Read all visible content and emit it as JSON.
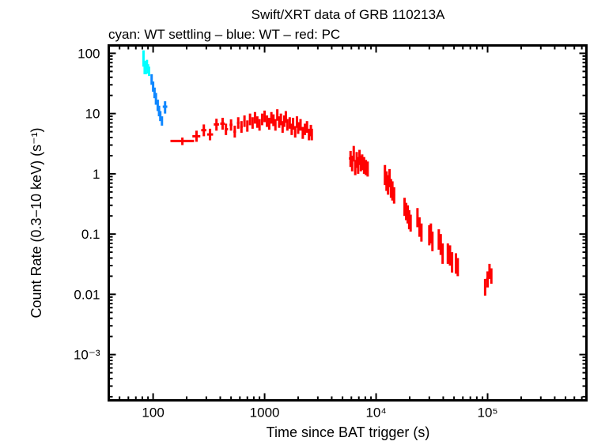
{
  "chart_data": {
    "type": "scatter",
    "title": "Swift/XRT data of GRB 110213A",
    "subtitle": "cyan: WT settling – blue: WT – red: PC",
    "xlabel": "Time since BAT trigger (s)",
    "ylabel": "Count Rate (0.3−10 keV) (s⁻¹)",
    "xscale": "log",
    "yscale": "log",
    "xlim": [
      40,
      770000
    ],
    "ylim": [
      0.000174,
      135
    ],
    "x_ticks": [
      {
        "v": 100,
        "label": "100"
      },
      {
        "v": 1000,
        "label": "1000"
      },
      {
        "v": 10000,
        "label": "10⁴"
      },
      {
        "v": 100000,
        "label": "10⁵"
      }
    ],
    "y_ticks": [
      {
        "v": 100,
        "label": "100"
      },
      {
        "v": 10,
        "label": "10"
      },
      {
        "v": 1,
        "label": "1"
      },
      {
        "v": 0.1,
        "label": "0.1"
      },
      {
        "v": 0.01,
        "label": "0.01"
      },
      {
        "v": 0.001,
        "label": "10⁻³"
      }
    ],
    "grid": false,
    "point_format": [
      "t",
      "t_lo",
      "t_hi",
      "rate",
      "rate_lo",
      "rate_hi"
    ],
    "series": [
      {
        "name": "WT settling",
        "color": "#00ffff",
        "points": [
          [
            82,
            81,
            83,
            85,
            60,
            112
          ],
          [
            84,
            83,
            85,
            60,
            45,
            75
          ],
          [
            86,
            85,
            87,
            55,
            45,
            70
          ],
          [
            88,
            87,
            89,
            65,
            55,
            78
          ],
          [
            90,
            89,
            91,
            55,
            46,
            66
          ],
          [
            92,
            91,
            93,
            50,
            42,
            60
          ]
        ]
      },
      {
        "name": "WT",
        "color": "#0f87ff",
        "points": [
          [
            97,
            96,
            98,
            38,
            30,
            45
          ],
          [
            100,
            99,
            101,
            28,
            23,
            34
          ],
          [
            103,
            102,
            104,
            22,
            18,
            27
          ],
          [
            106,
            105,
            107,
            18,
            14,
            22
          ],
          [
            110,
            109,
            111,
            14,
            11,
            17
          ],
          [
            113,
            112,
            114,
            11,
            9,
            13.5
          ],
          [
            116,
            115,
            117,
            9,
            7.5,
            11
          ],
          [
            120,
            118,
            122,
            7.5,
            6.3,
            9
          ],
          [
            128,
            122,
            134,
            13,
            10,
            16
          ]
        ]
      },
      {
        "name": "PC",
        "color": "#ff0000",
        "points": [
          [
            183,
            143,
            233,
            3.5,
            3.0,
            4.0
          ],
          [
            245,
            225,
            265,
            4.2,
            3.4,
            5.2
          ],
          [
            285,
            270,
            300,
            5.3,
            4.2,
            6.6
          ],
          [
            324,
            305,
            345,
            4.5,
            3.6,
            5.6
          ],
          [
            370,
            350,
            390,
            6.6,
            5.2,
            8.2
          ],
          [
            420,
            400,
            440,
            6.8,
            5.4,
            8.5
          ],
          [
            450,
            440,
            470,
            5.5,
            4.4,
            6.8
          ],
          [
            500,
            485,
            515,
            6.5,
            5.2,
            8
          ],
          [
            540,
            525,
            555,
            5.0,
            4,
            6.3
          ],
          [
            580,
            565,
            595,
            7.0,
            5.6,
            8.7
          ],
          [
            620,
            605,
            635,
            6.0,
            4.8,
            7.5
          ],
          [
            660,
            645,
            675,
            7.5,
            6,
            9.3
          ],
          [
            700,
            685,
            715,
            6.2,
            5,
            7.7
          ],
          [
            740,
            725,
            755,
            8.0,
            6.4,
            10
          ],
          [
            780,
            765,
            795,
            7.0,
            5.6,
            8.7
          ],
          [
            820,
            805,
            835,
            8.5,
            6.8,
            10.6
          ],
          [
            860,
            845,
            875,
            7.2,
            5.8,
            9
          ],
          [
            900,
            880,
            920,
            6.5,
            5.2,
            8.1
          ],
          [
            950,
            930,
            970,
            8.0,
            6.4,
            10
          ],
          [
            1000,
            980,
            1020,
            9.0,
            7.2,
            11.2
          ],
          [
            1050,
            1030,
            1070,
            7.5,
            6,
            9.3
          ],
          [
            1100,
            1080,
            1120,
            6.8,
            5.4,
            8.5
          ],
          [
            1150,
            1130,
            1170,
            8.5,
            6.8,
            10.6
          ],
          [
            1200,
            1180,
            1220,
            7.8,
            6.2,
            9.7
          ],
          [
            1250,
            1230,
            1270,
            6.5,
            5.2,
            8.1
          ],
          [
            1300,
            1280,
            1320,
            9.5,
            7.6,
            11.8
          ],
          [
            1350,
            1330,
            1370,
            7.2,
            5.8,
            9
          ],
          [
            1400,
            1380,
            1420,
            8.0,
            6.4,
            10
          ],
          [
            1450,
            1430,
            1470,
            6.0,
            4.8,
            7.5
          ],
          [
            1500,
            1480,
            1520,
            7.5,
            6,
            9.3
          ],
          [
            1550,
            1530,
            1570,
            8.8,
            7,
            11
          ],
          [
            1600,
            1580,
            1620,
            6.5,
            5.2,
            8.1
          ],
          [
            1680,
            1650,
            1710,
            7.0,
            5.6,
            8.7
          ],
          [
            1750,
            1720,
            1780,
            5.5,
            4.4,
            6.8
          ],
          [
            1800,
            1780,
            1830,
            6.8,
            5.4,
            8.5
          ],
          [
            1880,
            1850,
            1910,
            5.0,
            4,
            6.2
          ],
          [
            1950,
            1920,
            1980,
            7.2,
            5.8,
            9
          ],
          [
            2000,
            1980,
            2030,
            5.8,
            4.6,
            7.2
          ],
          [
            2100,
            2060,
            2140,
            6.5,
            5.2,
            8.1
          ],
          [
            2200,
            2160,
            2240,
            4.8,
            3.8,
            6
          ],
          [
            2300,
            2260,
            2340,
            5.5,
            4.4,
            6.8
          ],
          [
            2400,
            2360,
            2440,
            6.0,
            4.8,
            7.5
          ],
          [
            2500,
            2460,
            2540,
            4.5,
            3.6,
            5.6
          ],
          [
            2600,
            2560,
            2640,
            5.2,
            4.2,
            6.5
          ],
          [
            2650,
            2620,
            2690,
            4.5,
            3.6,
            5.6
          ],
          [
            5900,
            5700,
            6000,
            1.8,
            1.3,
            2.4
          ],
          [
            6100,
            6000,
            6200,
            1.5,
            1.1,
            2.0
          ],
          [
            6300,
            6200,
            6400,
            2.2,
            1.6,
            2.9
          ],
          [
            6500,
            6400,
            6600,
            1.3,
            0.95,
            1.7
          ],
          [
            6700,
            6600,
            6800,
            1.7,
            1.25,
            2.3
          ],
          [
            6900,
            6800,
            7000,
            1.4,
            1.0,
            1.9
          ],
          [
            7100,
            7000,
            7200,
            1.9,
            1.4,
            2.5
          ],
          [
            7300,
            7200,
            7400,
            1.5,
            1.1,
            2.0
          ],
          [
            7500,
            7400,
            7650,
            1.6,
            1.15,
            2.1
          ],
          [
            7800,
            7650,
            7950,
            1.4,
            1.0,
            1.9
          ],
          [
            8100,
            7950,
            8250,
            1.3,
            0.95,
            1.7
          ],
          [
            8400,
            8250,
            8550,
            1.2,
            0.9,
            1.6
          ],
          [
            12000,
            11800,
            12200,
            1.0,
            0.65,
            1.4
          ],
          [
            12400,
            12200,
            12600,
            0.8,
            0.52,
            1.1
          ],
          [
            12800,
            12600,
            13000,
            0.7,
            0.45,
            0.95
          ],
          [
            13200,
            13000,
            13400,
            0.9,
            0.6,
            1.2
          ],
          [
            13600,
            13400,
            13800,
            0.6,
            0.4,
            0.82
          ],
          [
            14000,
            13800,
            14250,
            0.55,
            0.36,
            0.75
          ],
          [
            14500,
            14250,
            14800,
            0.45,
            0.32,
            0.6
          ],
          [
            18000,
            17700,
            18300,
            0.3,
            0.2,
            0.4
          ],
          [
            18600,
            18300,
            18900,
            0.25,
            0.17,
            0.33
          ],
          [
            19200,
            18900,
            19500,
            0.22,
            0.15,
            0.3
          ],
          [
            19800,
            19500,
            20100,
            0.18,
            0.12,
            0.25
          ],
          [
            20400,
            20100,
            20700,
            0.16,
            0.11,
            0.21
          ],
          [
            23500,
            23000,
            24000,
            0.2,
            0.13,
            0.27
          ],
          [
            24500,
            24000,
            25000,
            0.14,
            0.09,
            0.19
          ],
          [
            25500,
            25000,
            26000,
            0.11,
            0.075,
            0.15
          ],
          [
            30000,
            29500,
            30500,
            0.1,
            0.065,
            0.14
          ],
          [
            31000,
            30500,
            31500,
            0.11,
            0.07,
            0.15
          ],
          [
            32000,
            31500,
            32600,
            0.08,
            0.052,
            0.11
          ],
          [
            36500,
            35800,
            37200,
            0.085,
            0.055,
            0.12
          ],
          [
            38000,
            37200,
            38800,
            0.07,
            0.045,
            0.1
          ],
          [
            39500,
            38800,
            40200,
            0.05,
            0.032,
            0.07
          ],
          [
            44000,
            43200,
            44900,
            0.05,
            0.032,
            0.07
          ],
          [
            46000,
            45000,
            47000,
            0.045,
            0.03,
            0.065
          ],
          [
            48000,
            47000,
            49000,
            0.035,
            0.023,
            0.05
          ],
          [
            52000,
            51000,
            53000,
            0.035,
            0.022,
            0.048
          ],
          [
            54000,
            53000,
            55000,
            0.03,
            0.02,
            0.04
          ],
          [
            95000,
            93000,
            97000,
            0.013,
            0.0095,
            0.018
          ],
          [
            100000,
            97000,
            102000,
            0.018,
            0.013,
            0.024
          ],
          [
            104000,
            102000,
            106000,
            0.025,
            0.018,
            0.032
          ],
          [
            108000,
            106000,
            110000,
            0.02,
            0.015,
            0.027
          ]
        ]
      }
    ]
  }
}
